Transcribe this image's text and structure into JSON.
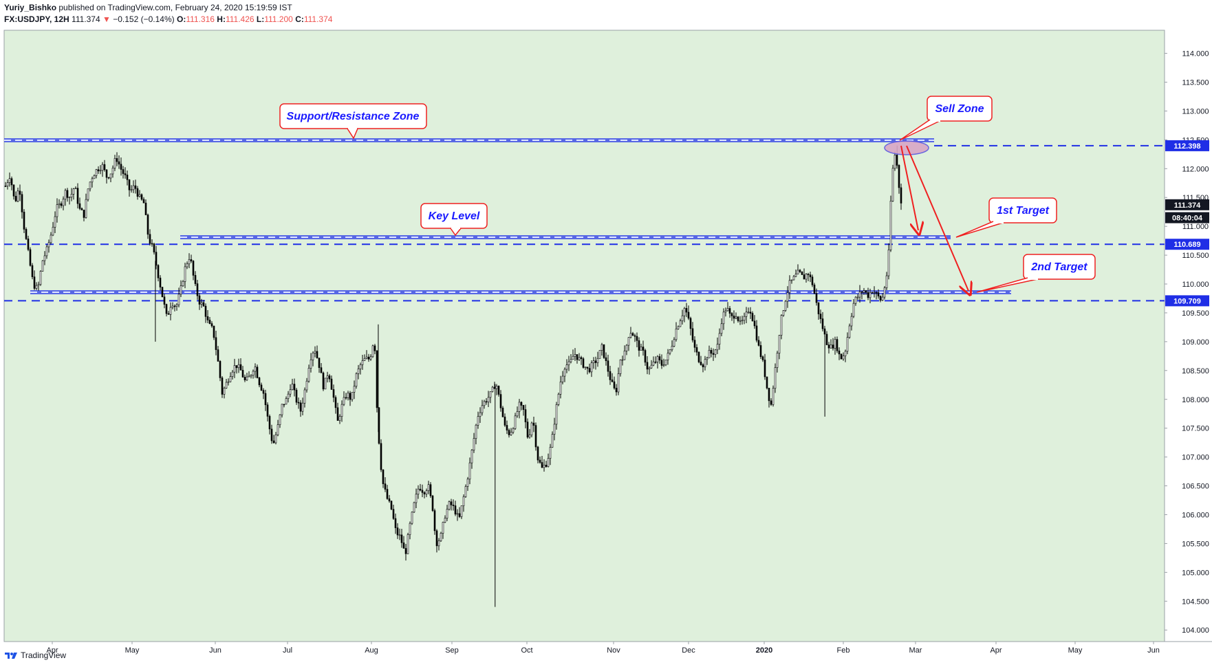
{
  "header": {
    "author": "Yuriy_Bishko",
    "published": "published on TradingView.com, February 24, 2020 15:19:59 IST",
    "symbol": "FX:USDJPY, 12H",
    "last": "111.374",
    "change_arrow": "▼",
    "change": "−0.152 (−0.14%)",
    "o_label": "O:",
    "o_val": "111.316",
    "h_label": "H:",
    "h_val": "111.426",
    "l_label": "L:",
    "l_val": "111.200",
    "c_label": "C:",
    "c_val": "111.374"
  },
  "footer": {
    "brand": "TradingView"
  },
  "colors": {
    "bg_plot": "#dff0dc",
    "accent_blue": "#1f2ee6",
    "arrow_red": "#ef2020",
    "label_text": "#1a1aff",
    "ellipse_fill": "#d8a6c6"
  },
  "chart_data": {
    "type": "candlestick",
    "ylim": [
      103.8,
      114.4
    ],
    "y_ticks": [
      "104.000",
      "104.500",
      "105.000",
      "105.500",
      "106.000",
      "106.500",
      "107.000",
      "107.500",
      "108.000",
      "108.500",
      "109.000",
      "109.500",
      "110.000",
      "110.500",
      "111.000",
      "111.500",
      "112.000",
      "112.500",
      "113.000",
      "113.500",
      "114.000"
    ],
    "x_ticks": [
      "Apr",
      "May",
      "Jun",
      "Jul",
      "Aug",
      "Sep",
      "Oct",
      "Nov",
      "Dec",
      "2020",
      "Feb",
      "Mar",
      "Apr",
      "May",
      "Jun"
    ],
    "price_labels": [
      {
        "text": "112.398",
        "value": 112.398,
        "style": "blue"
      },
      {
        "text": "111.374",
        "value": 111.374,
        "style": "black"
      },
      {
        "text": "08:40:04",
        "value": 111.15,
        "style": "black"
      },
      {
        "text": "110.689",
        "value": 110.689,
        "style": "blue"
      },
      {
        "text": "109.709",
        "value": 109.709,
        "style": "blue"
      }
    ],
    "levels": [
      112.398,
      110.689,
      109.709
    ],
    "series_path": [
      [
        0,
        111.7
      ],
      [
        6,
        111.9
      ],
      [
        12,
        111.4
      ],
      [
        18,
        111.7
      ],
      [
        24,
        111.0
      ],
      [
        30,
        110.5
      ],
      [
        36,
        110.0
      ],
      [
        42,
        109.9
      ],
      [
        48,
        110.4
      ],
      [
        54,
        110.6
      ],
      [
        60,
        110.9
      ],
      [
        66,
        111.3
      ],
      [
        72,
        111.4
      ],
      [
        78,
        111.6
      ],
      [
        84,
        111.5
      ],
      [
        90,
        111.7
      ],
      [
        96,
        111.3
      ],
      [
        102,
        111.2
      ],
      [
        108,
        111.7
      ],
      [
        114,
        111.9
      ],
      [
        120,
        112.0
      ],
      [
        126,
        112.05
      ],
      [
        132,
        111.85
      ],
      [
        138,
        111.95
      ],
      [
        144,
        112.2
      ],
      [
        150,
        112.0
      ],
      [
        156,
        111.85
      ],
      [
        162,
        111.6
      ],
      [
        168,
        111.7
      ],
      [
        174,
        111.5
      ],
      [
        180,
        111.4
      ],
      [
        186,
        110.8
      ],
      [
        192,
        110.6
      ],
      [
        198,
        110.2
      ],
      [
        204,
        109.8
      ],
      [
        210,
        109.4
      ],
      [
        216,
        109.7
      ],
      [
        222,
        109.6
      ],
      [
        228,
        109.9
      ],
      [
        234,
        110.3
      ],
      [
        240,
        110.5
      ],
      [
        246,
        110.0
      ],
      [
        252,
        109.7
      ],
      [
        258,
        109.6
      ],
      [
        264,
        109.3
      ],
      [
        270,
        109.2
      ],
      [
        276,
        108.7
      ],
      [
        282,
        108.1
      ],
      [
        288,
        108.3
      ],
      [
        294,
        108.5
      ],
      [
        300,
        108.6
      ],
      [
        306,
        108.5
      ],
      [
        312,
        108.3
      ],
      [
        318,
        108.4
      ],
      [
        324,
        108.6
      ],
      [
        330,
        108.3
      ],
      [
        336,
        108.1
      ],
      [
        342,
        107.6
      ],
      [
        348,
        107.2
      ],
      [
        354,
        107.5
      ],
      [
        360,
        107.9
      ],
      [
        366,
        108.0
      ],
      [
        372,
        108.3
      ],
      [
        378,
        108.0
      ],
      [
        384,
        107.8
      ],
      [
        390,
        108.2
      ],
      [
        396,
        108.7
      ],
      [
        402,
        108.9
      ],
      [
        408,
        108.6
      ],
      [
        414,
        108.2
      ],
      [
        420,
        108.5
      ],
      [
        426,
        108.1
      ],
      [
        432,
        107.6
      ],
      [
        438,
        107.9
      ],
      [
        444,
        108.1
      ],
      [
        450,
        108.0
      ],
      [
        456,
        108.4
      ],
      [
        462,
        108.6
      ],
      [
        468,
        108.7
      ],
      [
        474,
        108.7
      ],
      [
        480,
        109.1
      ],
      [
        484,
        107.6
      ],
      [
        490,
        106.6
      ],
      [
        496,
        106.3
      ],
      [
        502,
        106.1
      ],
      [
        508,
        105.7
      ],
      [
        514,
        105.6
      ],
      [
        520,
        105.3
      ],
      [
        526,
        105.8
      ],
      [
        532,
        106.2
      ],
      [
        538,
        106.5
      ],
      [
        544,
        106.4
      ],
      [
        550,
        106.5
      ],
      [
        556,
        106.1
      ],
      [
        560,
        105.5
      ],
      [
        566,
        105.6
      ],
      [
        572,
        106.0
      ],
      [
        578,
        106.2
      ],
      [
        584,
        106.1
      ],
      [
        590,
        105.9
      ],
      [
        596,
        106.3
      ],
      [
        602,
        106.7
      ],
      [
        608,
        107.2
      ],
      [
        614,
        107.7
      ],
      [
        620,
        107.9
      ],
      [
        626,
        108.0
      ],
      [
        632,
        108.1
      ],
      [
        638,
        108.3
      ],
      [
        644,
        107.9
      ],
      [
        650,
        107.5
      ],
      [
        656,
        107.4
      ],
      [
        662,
        107.6
      ],
      [
        668,
        107.9
      ],
      [
        674,
        107.8
      ],
      [
        680,
        107.3
      ],
      [
        686,
        107.7
      ],
      [
        692,
        107.0
      ],
      [
        698,
        106.8
      ],
      [
        704,
        106.9
      ],
      [
        710,
        107.2
      ],
      [
        716,
        107.8
      ],
      [
        722,
        108.3
      ],
      [
        728,
        108.6
      ],
      [
        734,
        108.6
      ],
      [
        740,
        108.8
      ],
      [
        746,
        108.7
      ],
      [
        752,
        108.6
      ],
      [
        758,
        108.5
      ],
      [
        764,
        108.6
      ],
      [
        770,
        108.7
      ],
      [
        776,
        108.9
      ],
      [
        782,
        108.6
      ],
      [
        788,
        108.3
      ],
      [
        794,
        108.1
      ],
      [
        800,
        108.7
      ],
      [
        806,
        108.8
      ],
      [
        812,
        109.2
      ],
      [
        818,
        109.1
      ],
      [
        824,
        108.9
      ],
      [
        830,
        108.8
      ],
      [
        836,
        108.5
      ],
      [
        842,
        108.6
      ],
      [
        848,
        108.7
      ],
      [
        854,
        108.6
      ],
      [
        860,
        108.7
      ],
      [
        866,
        108.9
      ],
      [
        872,
        109.2
      ],
      [
        878,
        109.4
      ],
      [
        884,
        109.6
      ],
      [
        890,
        109.3
      ],
      [
        896,
        108.9
      ],
      [
        902,
        108.7
      ],
      [
        908,
        108.6
      ],
      [
        914,
        108.8
      ],
      [
        920,
        108.8
      ],
      [
        926,
        108.9
      ],
      [
        932,
        109.4
      ],
      [
        938,
        109.6
      ],
      [
        944,
        109.4
      ],
      [
        950,
        109.5
      ],
      [
        956,
        109.3
      ],
      [
        962,
        109.4
      ],
      [
        968,
        109.6
      ],
      [
        974,
        109.3
      ],
      [
        980,
        108.9
      ],
      [
        986,
        108.6
      ],
      [
        992,
        108.1
      ],
      [
        996,
        107.9
      ],
      [
        1002,
        108.6
      ],
      [
        1008,
        109.3
      ],
      [
        1014,
        109.7
      ],
      [
        1020,
        110.0
      ],
      [
        1026,
        110.1
      ],
      [
        1032,
        110.2
      ],
      [
        1038,
        110.1
      ],
      [
        1044,
        110.2
      ],
      [
        1050,
        110.0
      ],
      [
        1056,
        109.6
      ],
      [
        1062,
        109.3
      ],
      [
        1068,
        109.0
      ],
      [
        1074,
        108.9
      ],
      [
        1080,
        109.0
      ],
      [
        1086,
        108.7
      ],
      [
        1092,
        108.8
      ],
      [
        1098,
        109.3
      ],
      [
        1104,
        109.7
      ],
      [
        1110,
        109.8
      ],
      [
        1116,
        109.9
      ],
      [
        1122,
        109.8
      ],
      [
        1128,
        109.9
      ],
      [
        1134,
        109.8
      ],
      [
        1140,
        109.7
      ],
      [
        1146,
        110.1
      ],
      [
        1149,
        110.5
      ],
      [
        1152,
        111.5
      ],
      [
        1155,
        112.1
      ],
      [
        1158,
        112.3
      ],
      [
        1161,
        111.9
      ],
      [
        1164,
        111.5
      ],
      [
        1167,
        111.37
      ]
    ],
    "annotations": [
      {
        "text": "Support/Resistance Zone"
      },
      {
        "text": "Key Level"
      },
      {
        "text": "Sell Zone"
      },
      {
        "text": "1st Target"
      },
      {
        "text": "2nd Target"
      }
    ]
  }
}
